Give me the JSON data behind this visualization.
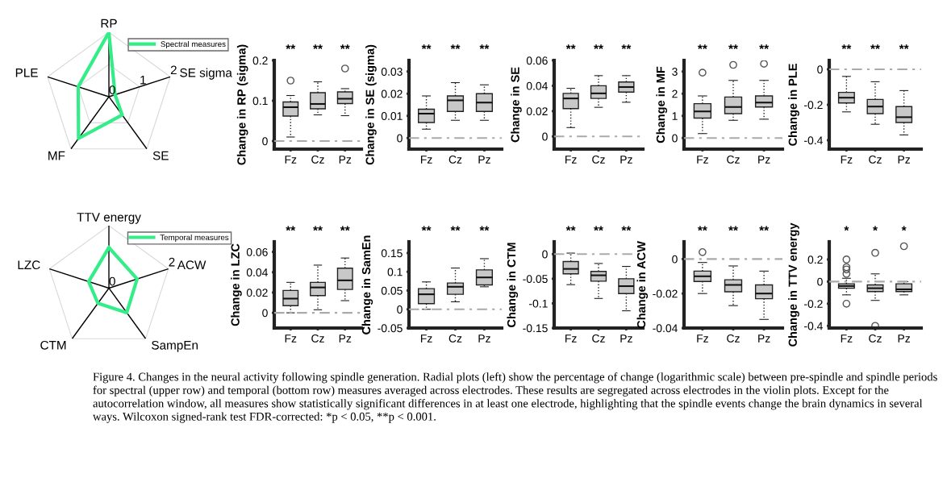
{
  "chart_data": [
    {
      "type": "radar",
      "categories": [
        "RP",
        "SE sigma",
        "SE",
        "MF",
        "PLE"
      ],
      "series": [
        {
          "name": "Spectral measures",
          "color": "#33ee88",
          "values": [
            2,
            0.2,
            0.7,
            1.6,
            1.0
          ]
        }
      ],
      "ylim": [
        0,
        2
      ],
      "yticks": [
        0,
        1,
        2
      ],
      "grid": true,
      "legend": "top right"
    },
    {
      "type": "box",
      "ylabel": "Change in RP (sigma)",
      "categories": [
        "Fz",
        "Cz",
        "Pz"
      ],
      "ylim": [
        -0.02,
        0.2
      ],
      "yticks": [
        0,
        0.1,
        0.2
      ],
      "color": "#c8c8c8",
      "boxes": [
        {
          "low": 0.01,
          "q1": 0.062,
          "median": 0.084,
          "q3": 0.097,
          "high": 0.113,
          "outliers": [
            0.15
          ]
        },
        {
          "low": 0.065,
          "q1": 0.08,
          "median": 0.092,
          "q3": 0.12,
          "high": 0.147
        },
        {
          "low": 0.063,
          "q1": 0.093,
          "median": 0.105,
          "q3": 0.122,
          "high": 0.13,
          "outliers": [
            0.18
          ]
        }
      ],
      "ref_lines": [
        {
          "axis": "y",
          "value": 0,
          "color": "#aaaaaa",
          "line_style": "dashed"
        }
      ],
      "annotations": [
        "**",
        "**",
        "**"
      ]
    },
    {
      "type": "box",
      "ylabel": "Change in SE (sigma)",
      "categories": [
        "Fz",
        "Cz",
        "Pz"
      ],
      "ylim": [
        -0.005,
        0.035
      ],
      "yticks": [
        0,
        0.01,
        0.02,
        0.03
      ],
      "color": "#c8c8c8",
      "boxes": [
        {
          "low": 0.004,
          "q1": 0.007,
          "median": 0.011,
          "q3": 0.013,
          "high": 0.019
        },
        {
          "low": 0.008,
          "q1": 0.012,
          "median": 0.017,
          "q3": 0.019,
          "high": 0.025
        },
        {
          "low": 0.008,
          "q1": 0.012,
          "median": 0.016,
          "q3": 0.02,
          "high": 0.024
        }
      ],
      "ref_lines": [
        {
          "axis": "y",
          "value": 0,
          "color": "#aaaaaa",
          "line_style": "dashed"
        }
      ],
      "annotations": [
        "**",
        "**",
        "**"
      ]
    },
    {
      "type": "box",
      "ylabel": "Change in SE",
      "categories": [
        "Fz",
        "Cz",
        "Pz"
      ],
      "ylim": [
        -0.01,
        0.06
      ],
      "yticks": [
        0,
        0.02,
        0.04,
        0.06
      ],
      "color": "#c8c8c8",
      "boxes": [
        {
          "low": 0.007,
          "q1": 0.022,
          "median": 0.03,
          "q3": 0.034,
          "high": 0.038
        },
        {
          "low": 0.023,
          "q1": 0.03,
          "median": 0.034,
          "q3": 0.04,
          "high": 0.048
        },
        {
          "low": 0.027,
          "q1": 0.035,
          "median": 0.039,
          "q3": 0.043,
          "high": 0.048
        }
      ],
      "ref_lines": [
        {
          "axis": "y",
          "value": 0,
          "color": "#aaaaaa",
          "line_style": "dashed"
        }
      ],
      "annotations": [
        "**",
        "**",
        "**"
      ]
    },
    {
      "type": "box",
      "ylabel": "Change in MF",
      "categories": [
        "Fz",
        "Cz",
        "Pz"
      ],
      "ylim": [
        -0.5,
        3.5
      ],
      "yticks": [
        0,
        1,
        2,
        3
      ],
      "color": "#c8c8c8",
      "boxes": [
        {
          "low": 0.2,
          "q1": 0.9,
          "median": 1.2,
          "q3": 1.55,
          "high": 1.9,
          "outliers": [
            2.95
          ]
        },
        {
          "low": 0.8,
          "q1": 1.1,
          "median": 1.4,
          "q3": 1.85,
          "high": 2.6,
          "outliers": [
            3.3
          ]
        },
        {
          "low": 0.85,
          "q1": 1.4,
          "median": 1.6,
          "q3": 1.9,
          "high": 2.6,
          "outliers": [
            3.35
          ]
        }
      ],
      "ref_lines": [
        {
          "axis": "y",
          "value": 0,
          "color": "#aaaaaa",
          "line_style": "dashed"
        }
      ],
      "annotations": [
        "**",
        "**",
        "**"
      ]
    },
    {
      "type": "box",
      "ylabel": "Change in PLE",
      "categories": [
        "Fz",
        "Cz",
        "Pz"
      ],
      "ylim": [
        -0.45,
        0.05
      ],
      "yticks": [
        -0.4,
        -0.2,
        0
      ],
      "color": "#c8c8c8",
      "boxes": [
        {
          "low": -0.24,
          "q1": -0.19,
          "median": -0.16,
          "q3": -0.13,
          "high": -0.04
        },
        {
          "low": -0.31,
          "q1": -0.25,
          "median": -0.21,
          "q3": -0.17,
          "high": -0.07
        },
        {
          "low": -0.37,
          "q1": -0.3,
          "median": -0.27,
          "q3": -0.21,
          "high": -0.12
        }
      ],
      "ref_lines": [
        {
          "axis": "y",
          "value": 0,
          "color": "#aaaaaa",
          "line_style": "dashed"
        }
      ],
      "annotations": [
        "**",
        "**",
        "**"
      ]
    },
    {
      "type": "radar",
      "categories": [
        "TTV energy",
        "ACW",
        "SampEn",
        "CTM",
        "LZC"
      ],
      "series": [
        {
          "name": "Temporal measures",
          "color": "#33ee88",
          "values": [
            1.3,
            0.95,
            0.97,
            0.6,
            0.68
          ]
        }
      ],
      "ylim": [
        0,
        2
      ],
      "yticks": [
        0,
        2
      ],
      "grid": true,
      "legend": "top right"
    },
    {
      "type": "box",
      "ylabel": "Change in LZC",
      "categories": [
        "Fz",
        "Cz",
        "Pz"
      ],
      "ylim": [
        -0.015,
        0.07
      ],
      "yticks": [
        0,
        0.02,
        0.04,
        0.06
      ],
      "color": "#c8c8c8",
      "boxes": [
        {
          "low": 0.0,
          "q1": 0.007,
          "median": 0.014,
          "q3": 0.022,
          "high": 0.03
        },
        {
          "low": 0.003,
          "q1": 0.017,
          "median": 0.025,
          "q3": 0.03,
          "high": 0.047
        },
        {
          "low": 0.012,
          "q1": 0.023,
          "median": 0.032,
          "q3": 0.044,
          "high": 0.054
        }
      ],
      "ref_lines": [
        {
          "axis": "y",
          "value": 0,
          "color": "#aaaaaa",
          "line_style": "dashed"
        }
      ],
      "annotations": [
        "**",
        "**",
        "**"
      ]
    },
    {
      "type": "box",
      "ylabel": "Change in SamEn",
      "categories": [
        "Fz",
        "Cz",
        "Pz"
      ],
      "ylim": [
        -0.05,
        0.18
      ],
      "yticks": [
        -0.05,
        0,
        0.05,
        0.1,
        0.15
      ],
      "color": "#c8c8c8",
      "boxes": [
        {
          "low": 0.0,
          "q1": 0.015,
          "median": 0.04,
          "q3": 0.055,
          "high": 0.073
        },
        {
          "low": 0.02,
          "q1": 0.04,
          "median": 0.06,
          "q3": 0.07,
          "high": 0.11
        },
        {
          "low": 0.06,
          "q1": 0.065,
          "median": 0.085,
          "q3": 0.105,
          "high": 0.135
        }
      ],
      "ref_lines": [
        {
          "axis": "y",
          "value": 0,
          "color": "#aaaaaa",
          "line_style": "dashed"
        }
      ],
      "annotations": [
        "**",
        "**",
        "**"
      ]
    },
    {
      "type": "box",
      "ylabel": "Change in CTM",
      "categories": [
        "Fz",
        "Cz",
        "Pz"
      ],
      "ylim": [
        -0.15,
        0.025
      ],
      "yticks": [
        -0.15,
        -0.1,
        -0.05,
        0
      ],
      "color": "#c8c8c8",
      "boxes": [
        {
          "low": -0.062,
          "q1": -0.04,
          "median": -0.03,
          "q3": -0.015,
          "high": 0.002
        },
        {
          "low": -0.09,
          "q1": -0.055,
          "median": -0.043,
          "q3": -0.035,
          "high": -0.019
        },
        {
          "low": -0.115,
          "q1": -0.08,
          "median": -0.065,
          "q3": -0.05,
          "high": -0.025
        }
      ],
      "ref_lines": [
        {
          "axis": "y",
          "value": 0,
          "color": "#aaaaaa",
          "line_style": "dashed"
        }
      ],
      "annotations": [
        "**",
        "**",
        "**"
      ]
    },
    {
      "type": "box",
      "ylabel": "Change in ACW",
      "categories": [
        "Fz",
        "Cz",
        "Pz"
      ],
      "ylim": [
        -0.04,
        0.01
      ],
      "yticks": [
        -0.04,
        -0.02,
        0
      ],
      "color": "#c8c8c8",
      "boxes": [
        {
          "low": -0.02,
          "q1": -0.013,
          "median": -0.01,
          "q3": -0.007,
          "high": -0.002,
          "outliers": [
            0.004
          ]
        },
        {
          "low": -0.027,
          "q1": -0.019,
          "median": -0.015,
          "q3": -0.012,
          "high": -0.004
        },
        {
          "low": -0.035,
          "q1": -0.023,
          "median": -0.02,
          "q3": -0.015,
          "high": -0.007
        }
      ],
      "ref_lines": [
        {
          "axis": "y",
          "value": 0,
          "color": "#aaaaaa",
          "line_style": "dashed"
        }
      ],
      "annotations": [
        "**",
        "**",
        "**"
      ]
    },
    {
      "type": "box",
      "ylabel": "Change in TTV energy",
      "categories": [
        "Fz",
        "Cz",
        "Pz"
      ],
      "ylim": [
        -0.42,
        0.36
      ],
      "yticks": [
        -0.4,
        -0.2,
        0,
        0.2
      ],
      "color": "#c8c8c8",
      "boxes": [
        {
          "low": -0.12,
          "q1": -0.06,
          "median": -0.04,
          "q3": -0.02,
          "high": 0.03,
          "outliers": [
            0.2,
            0.13,
            0.11,
            0.07,
            -0.2
          ]
        },
        {
          "low": -0.17,
          "q1": -0.09,
          "median": -0.06,
          "q3": -0.03,
          "high": 0.07,
          "outliers": [
            0.26,
            -0.4
          ]
        },
        {
          "low": -0.12,
          "q1": -0.09,
          "median": -0.07,
          "q3": -0.02,
          "high": 0.0,
          "outliers": [
            0.32
          ]
        }
      ],
      "ref_lines": [
        {
          "axis": "y",
          "value": 0,
          "color": "#aaaaaa",
          "line_style": "dashed"
        }
      ],
      "annotations": [
        "*",
        "*",
        "*"
      ]
    },
    {
      "type": "other",
      "annotations": [
        "Figure 4. Changes in the neural activity following spindle generation. Radial plots (left) show the percentage of change (logarithmic scale) between pre-spindle and spindle periods for spectral (upper row) and temporal (bottom row) measures averaged across electrodes. These results are segregated across electrodes in the violin plots. Except for the autocorrelation window, all measures show statistically significant differences in at least one electrode, highlighting that the spindle events change the brain dynamics in several ways. Wilcoxon signed-rank test FDR-corrected: *p < 0.05, **p < 0.001."
      ]
    }
  ]
}
